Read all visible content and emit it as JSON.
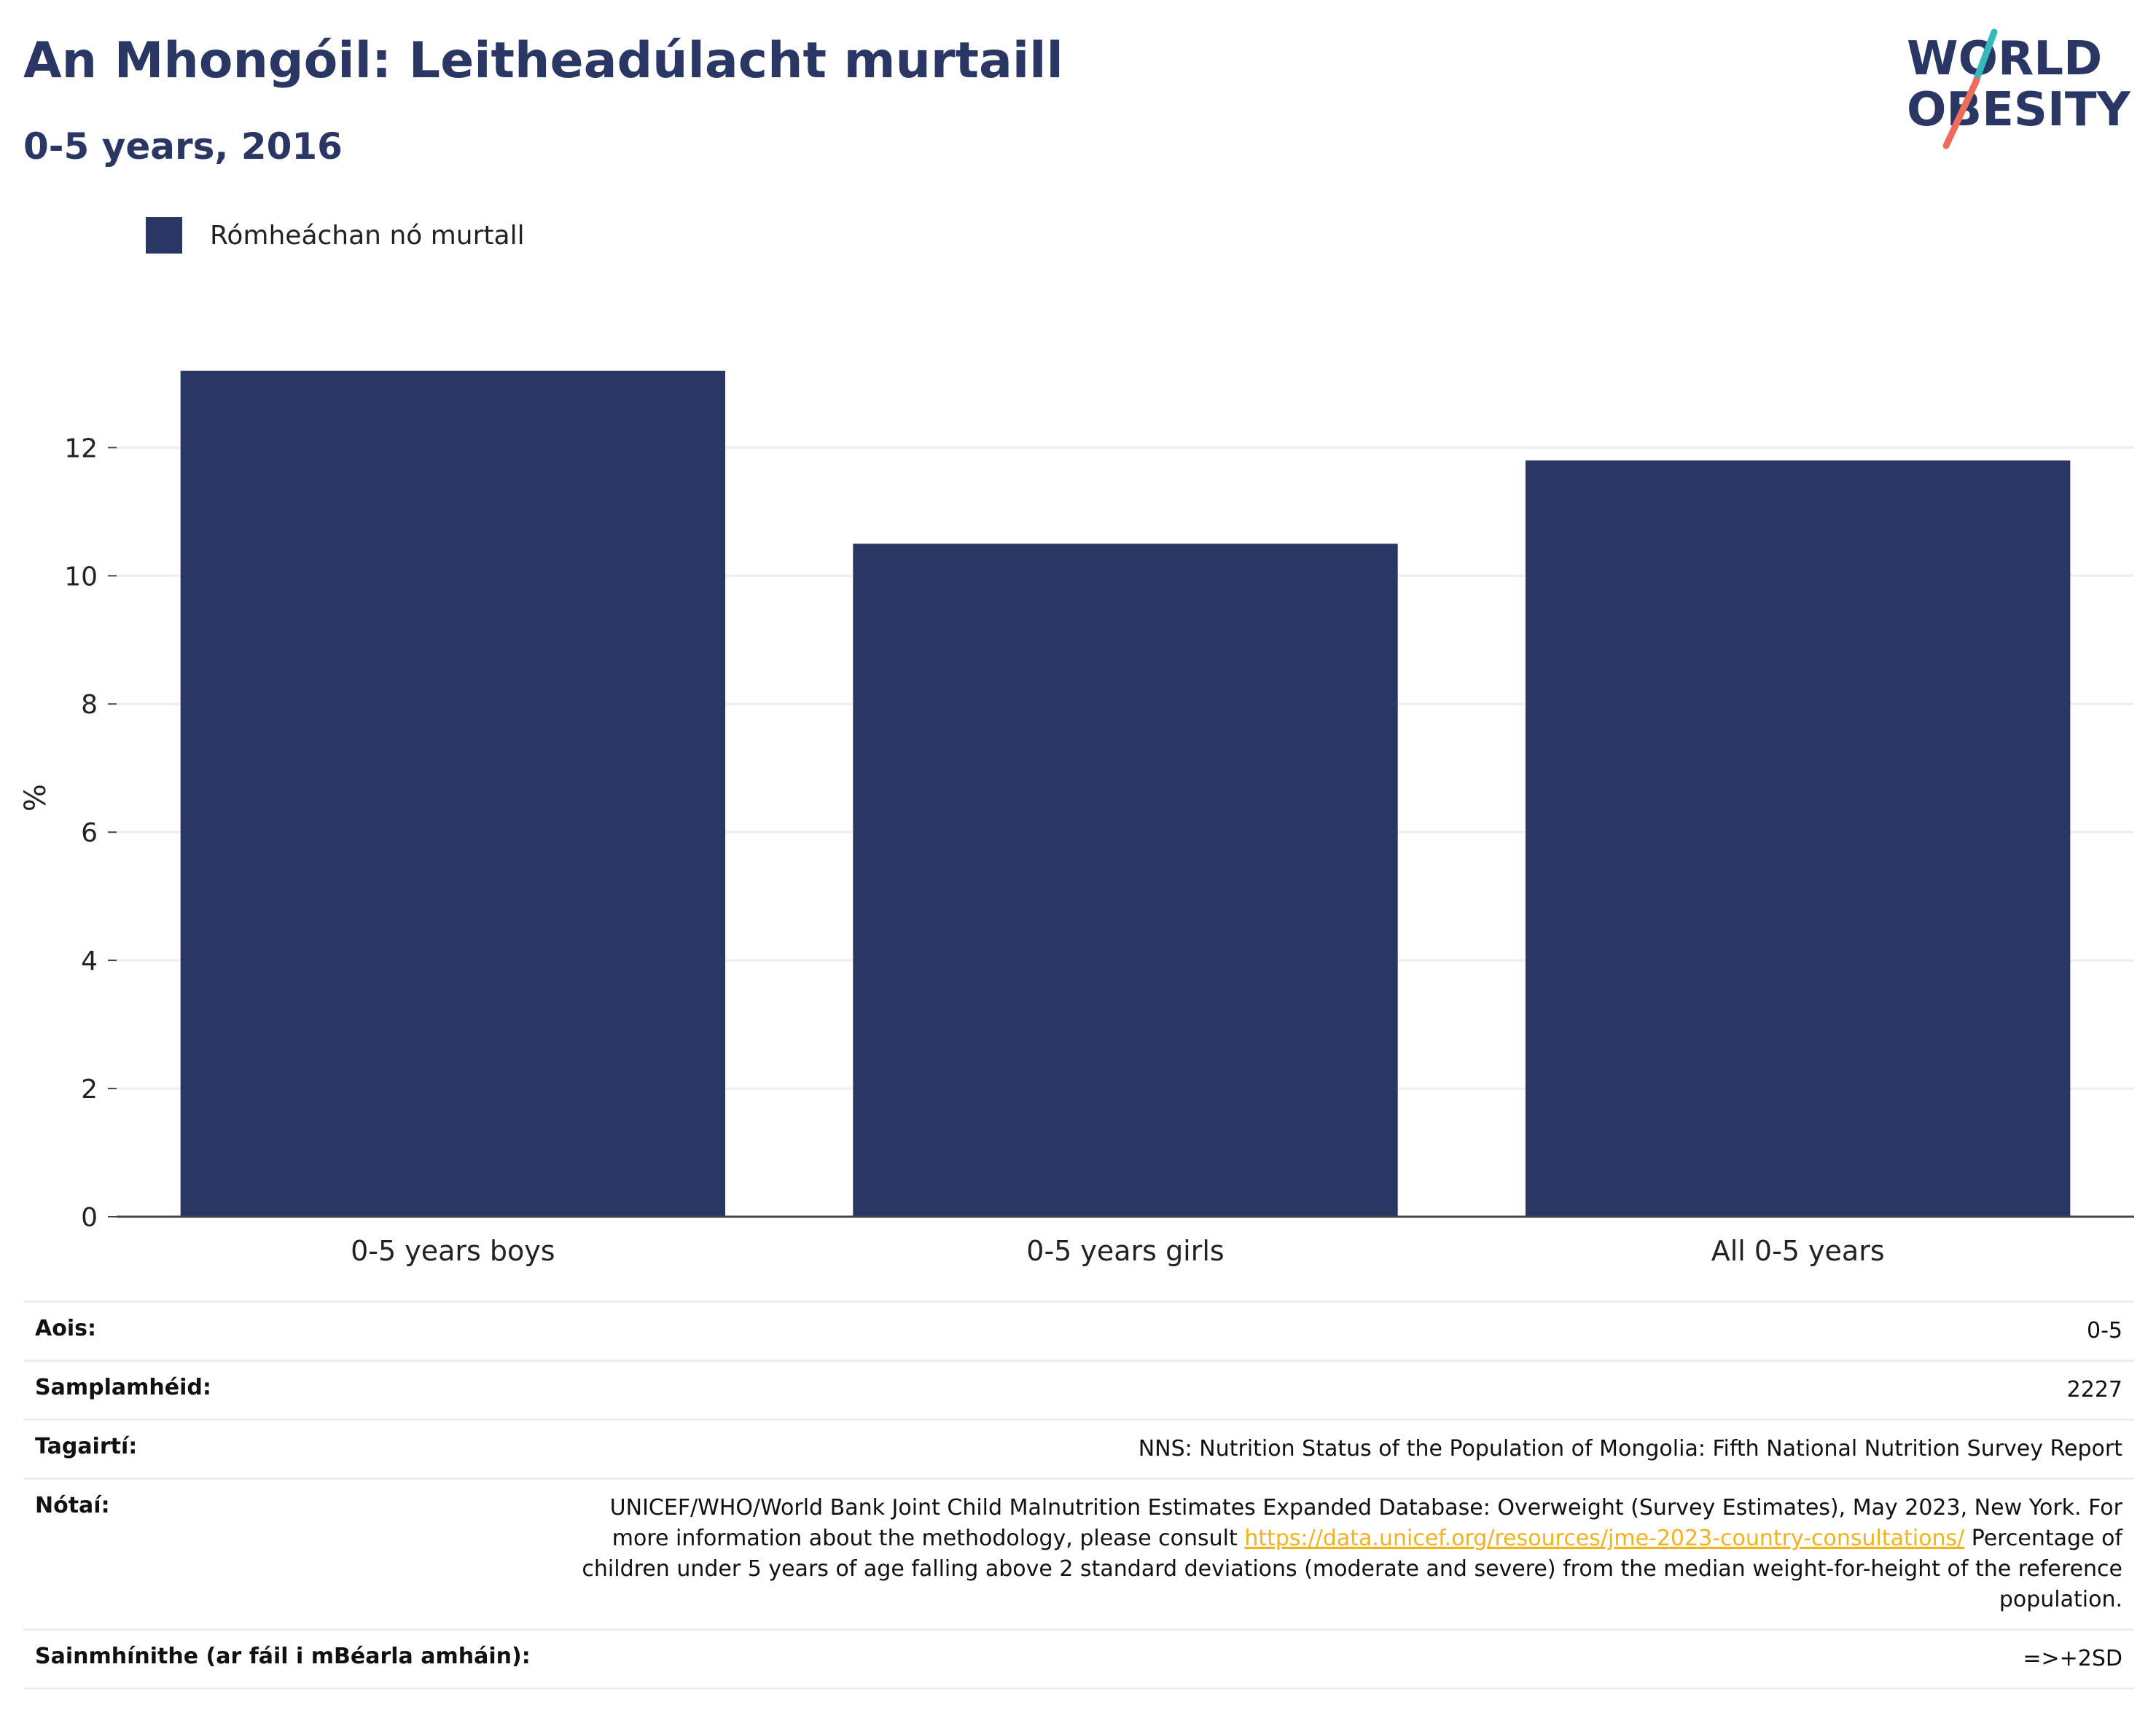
{
  "header": {
    "title": "An Mhongóil: Leitheadúlacht murtaill",
    "subtitle": "0-5 years, 2016"
  },
  "logo": {
    "line1": "WORLD",
    "line2": "OBESITY",
    "text_color": "#2a3663",
    "slash_teal": "#35b9bb",
    "slash_coral": "#ee6c5b"
  },
  "colors": {
    "bar": "#2a3663",
    "grid": "#eceef5",
    "axis": "#444444",
    "link": "#f2b21c"
  },
  "chart_data": {
    "type": "bar",
    "categories": [
      "0-5 years boys",
      "0-5 years girls",
      "All 0-5 years"
    ],
    "series": [
      {
        "name": "Rómheáchan nó murtall",
        "values": [
          13.2,
          10.5,
          11.8
        ]
      }
    ],
    "ylabel": "%",
    "xlabel": "",
    "ylim": [
      0,
      13.3
    ],
    "yticks": [
      0,
      2,
      4,
      6,
      8,
      10,
      12
    ],
    "grid": true,
    "legend_position": "top-left"
  },
  "meta": {
    "age": {
      "label": "Aois:",
      "value": "0-5"
    },
    "sample": {
      "label": "Samplamhéid:",
      "value": "2227"
    },
    "references": {
      "label": "Tagairtí:",
      "value": "NNS: Nutrition Status of the Population of Mongolia: Fifth National Nutrition Survey Report"
    },
    "notes": {
      "label": "Nótaí:",
      "text_before": "UNICEF/WHO/World Bank Joint Child Malnutrition Estimates Expanded Database: Overweight (Survey Estimates), May 2023, New York. For more information about the methodology, please consult ",
      "link": "https://data.unicef.org/resources/jme-2023-country-consultations/",
      "text_after": " Percentage of children under 5 years of age falling above 2 standard deviations (moderate and severe) from the median weight-for-height of the reference population."
    },
    "definitions": {
      "label": "Sainmhínithe (ar fáil i mBéarla amháin):",
      "value": "=>+2SD"
    }
  }
}
